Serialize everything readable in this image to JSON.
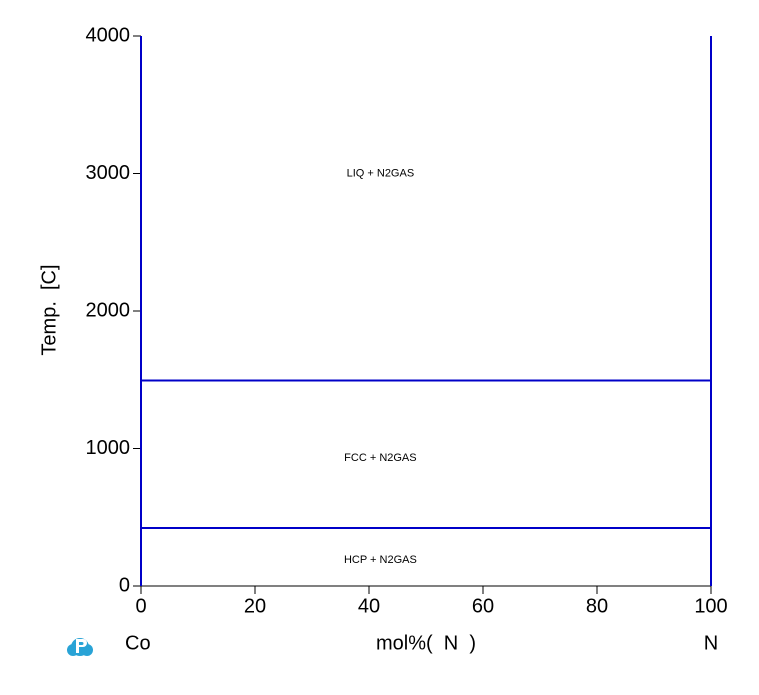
{
  "chart_data": {
    "type": "line",
    "xlabel": "mol%(  N  )",
    "ylabel": "Temp.  [C]",
    "components": [
      "Co",
      "N"
    ],
    "xlim": [
      0,
      100
    ],
    "xticks": [
      0,
      20,
      40,
      60,
      80,
      100
    ],
    "ylim": [
      0,
      4000
    ],
    "yticks": [
      0,
      1000,
      2000,
      3000,
      4000
    ],
    "series": [
      {
        "color": "#0000c8",
        "x": [
          0,
          100
        ],
        "values": [
          1495,
          1495
        ]
      },
      {
        "color": "#0000c8",
        "x": [
          0,
          100
        ],
        "values": [
          422,
          422
        ]
      },
      {
        "color": "#0000c8",
        "x": [
          0,
          0
        ],
        "values": [
          0,
          4000
        ]
      },
      {
        "color": "#0000c8",
        "x": [
          100,
          100
        ],
        "values": [
          0,
          4000
        ]
      }
    ],
    "annotations": [
      {
        "text": "LIQ + N2GAS",
        "x": 42,
        "y": 3000
      },
      {
        "text": "FCC + N2GAS",
        "x": 42,
        "y": 930
      },
      {
        "text": "HCP + N2GAS",
        "x": 42,
        "y": 190
      }
    ]
  }
}
